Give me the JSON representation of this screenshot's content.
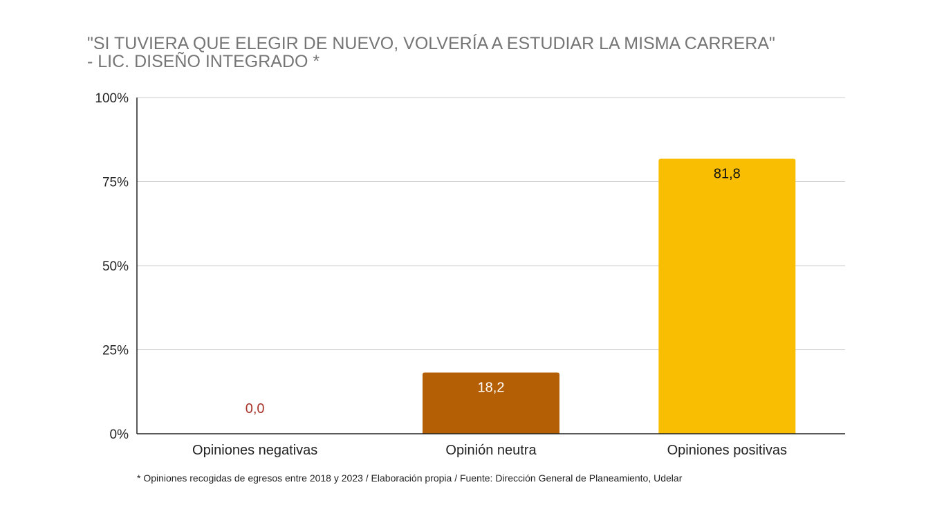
{
  "chart_data": {
    "type": "bar",
    "title_lines": [
      "\"SI TUVIERA QUE ELEGIR DE NUEVO, VOLVERÍA A ESTUDIAR LA MISMA CARRERA\"",
      "- LIC. DISEÑO INTEGRADO *"
    ],
    "categories": [
      "Opiniones negativas",
      "Opinión neutra",
      "Opiniones positivas"
    ],
    "values": [
      0.0,
      18.2,
      81.8
    ],
    "value_labels": [
      "0,0",
      "18,2",
      "81,8"
    ],
    "colors": [
      "#A8342A",
      "#B45F06",
      "#F9BE02"
    ],
    "value_label_colors": [
      "#A8342A",
      "#ffffff",
      "#111111"
    ],
    "ylim": [
      0,
      100
    ],
    "yticks": [
      0,
      25,
      50,
      75,
      100
    ],
    "ytick_labels": [
      "0%",
      "25%",
      "50%",
      "75%",
      "100%"
    ],
    "xlabel": "",
    "ylabel": "",
    "grid": true,
    "legend": "none"
  },
  "footnote": "* Opiniones recogidas de egresos entre 2018 y 2023 / Elaboración propia / Fuente: Dirección General de Planeamiento, Udelar"
}
